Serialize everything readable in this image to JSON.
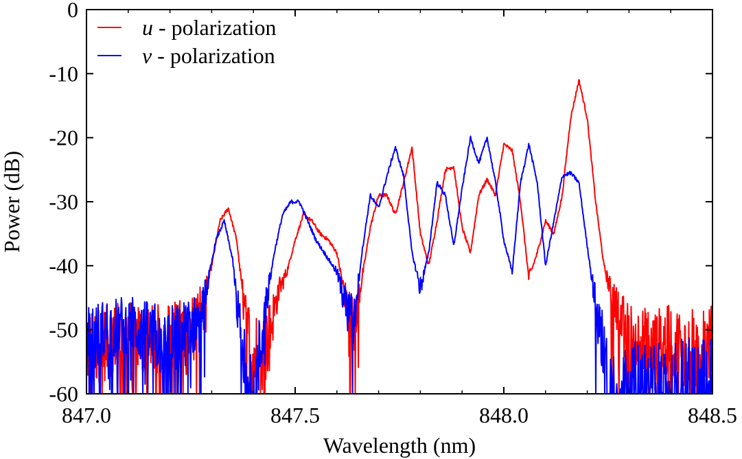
{
  "chart_data": {
    "type": "line",
    "title": "",
    "xlabel": "Wavelength (nm)",
    "ylabel": "Power (dB)",
    "xlim": [
      847.0,
      848.5
    ],
    "ylim": [
      -60,
      0
    ],
    "x_ticks": [
      847.0,
      847.5,
      848.0,
      848.5
    ],
    "x_tick_labels": [
      "847.0",
      "847.5",
      "848.0",
      "848.5"
    ],
    "y_ticks": [
      0,
      -10,
      -20,
      -30,
      -40,
      -50,
      -60
    ],
    "y_tick_labels": [
      "0",
      "-10",
      "-20",
      "-30",
      "-40",
      "-50",
      "-60"
    ],
    "grid": false,
    "legend_position": "top-left",
    "noise_floor_db": -60,
    "series": [
      {
        "name": "u - polarization",
        "legend_symbol": "u",
        "legend_suffix": " - polarization",
        "color": "#ff0000",
        "x": [
          847.0,
          847.05,
          847.1,
          847.15,
          847.2,
          847.25,
          847.28,
          847.3,
          847.32,
          847.34,
          847.36,
          847.38,
          847.4,
          847.42,
          847.44,
          847.46,
          847.48,
          847.5,
          847.52,
          847.54,
          847.56,
          847.58,
          847.6,
          847.62,
          847.64,
          847.66,
          847.68,
          847.7,
          847.72,
          847.74,
          847.76,
          847.78,
          847.8,
          847.82,
          847.84,
          847.86,
          847.88,
          847.9,
          847.92,
          847.94,
          847.96,
          847.98,
          848.0,
          848.02,
          848.04,
          848.06,
          848.08,
          848.1,
          848.12,
          848.14,
          848.16,
          848.18,
          848.2,
          848.22,
          848.24,
          848.26,
          848.28,
          848.3,
          848.35,
          848.4,
          848.45,
          848.5
        ],
        "y": [
          -53,
          -52,
          -50,
          -52,
          -51,
          -49,
          -46,
          -40,
          -33,
          -31,
          -36,
          -48,
          -54,
          -55,
          -50,
          -44,
          -41,
          -36,
          -32,
          -33,
          -35,
          -36,
          -38,
          -45,
          -49,
          -42,
          -34,
          -29,
          -29,
          -32,
          -27,
          -21.5,
          -35,
          -40,
          -33,
          -25,
          -24.5,
          -34,
          -38,
          -29,
          -26.5,
          -29,
          -21,
          -22,
          -30,
          -42,
          -38,
          -33,
          -35,
          -29,
          -17,
          -11,
          -17,
          -30,
          -40,
          -45,
          -48,
          -51,
          -53,
          -52,
          -53,
          -52
        ]
      },
      {
        "name": "v - polarization",
        "legend_symbol": "v",
        "legend_suffix": " - polarization",
        "color": "#0000ff",
        "x": [
          847.0,
          847.05,
          847.1,
          847.15,
          847.2,
          847.25,
          847.27,
          847.29,
          847.31,
          847.33,
          847.35,
          847.37,
          847.39,
          847.41,
          847.43,
          847.45,
          847.47,
          847.49,
          847.51,
          847.53,
          847.55,
          847.57,
          847.6,
          847.62,
          847.64,
          847.66,
          847.68,
          847.7,
          847.72,
          847.74,
          847.76,
          847.78,
          847.8,
          847.82,
          847.84,
          847.86,
          847.88,
          847.9,
          847.92,
          847.94,
          847.96,
          847.98,
          848.0,
          848.02,
          848.04,
          848.06,
          848.08,
          848.1,
          848.12,
          848.14,
          848.16,
          848.18,
          848.2,
          848.22,
          848.25,
          848.3,
          848.4,
          848.5
        ],
        "y": [
          -52,
          -50,
          -49,
          -51,
          -52,
          -50,
          -48,
          -43,
          -36,
          -33,
          -39,
          -52,
          -57,
          -57,
          -46,
          -38,
          -32,
          -30,
          -30,
          -33,
          -36,
          -38,
          -41,
          -46,
          -49,
          -38,
          -29,
          -31,
          -26,
          -21.5,
          -26,
          -38,
          -43.5,
          -38,
          -27,
          -29,
          -37,
          -28,
          -20,
          -24,
          -20,
          -27,
          -36,
          -41,
          -27,
          -21,
          -27,
          -40,
          -33,
          -26,
          -25.5,
          -27,
          -37,
          -46,
          -58,
          -59,
          -59,
          -58
        ]
      }
    ]
  }
}
